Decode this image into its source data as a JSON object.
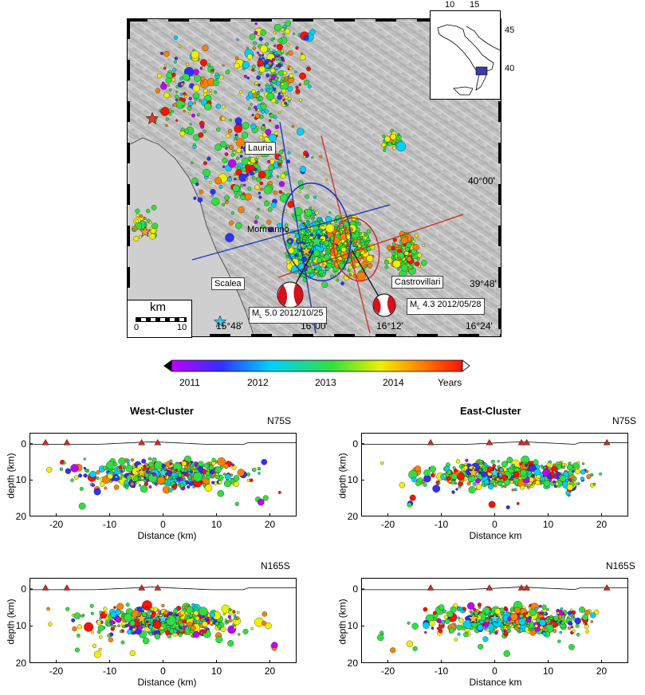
{
  "map": {
    "towns": [
      {
        "name": "Lauria"
      },
      {
        "name": "Mormanno"
      },
      {
        "name": "Scalea"
      },
      {
        "name": "Castrovillari"
      }
    ],
    "lat_labels": [
      "40°00'",
      "39°48'"
    ],
    "lon_labels": [
      "15°48'",
      "16°00'",
      "16°12'",
      "16°24'"
    ],
    "scalebar": {
      "title": "km",
      "ticks": [
        "0",
        "10"
      ]
    },
    "events": [
      {
        "label": "M",
        "text": "5.0 2012/10/25"
      },
      {
        "label": "M",
        "text": "4.3 2012/05/28"
      }
    ],
    "profile_colors": {
      "west": "#1b2fbf",
      "east": "#d32a1e"
    }
  },
  "inset": {
    "lon_ticks": [
      "10",
      "15"
    ],
    "lat_ticks": [
      "45",
      "40"
    ]
  },
  "colorbar": {
    "ticks": [
      "2011",
      "2012",
      "2013",
      "2014"
    ],
    "unit": "Years",
    "colors": [
      "#c000ff",
      "#3030ff",
      "#00d0ff",
      "#30e040",
      "#f0f000",
      "#ff8000",
      "#ff1000"
    ]
  },
  "sections": {
    "west_title": "West-Cluster",
    "east_title": "East-Cluster",
    "panels": [
      {
        "orientation": "N75S",
        "ylabel": "depth (km)",
        "xlabel": "Distance (km)",
        "xticks": [
          "-20",
          "-10",
          "0",
          "10",
          "20"
        ],
        "yticks": [
          "0",
          "10",
          "20"
        ]
      },
      {
        "orientation": "N75S",
        "ylabel": "depth (km)",
        "xlabel": "Distance km",
        "xticks": [
          "-20",
          "-10",
          "0",
          "10",
          "20"
        ],
        "yticks": [
          "0",
          "10",
          "20"
        ]
      },
      {
        "orientation": "N165S",
        "ylabel": "depth (km)",
        "xlabel": "Distance (km)",
        "xticks": [
          "-20",
          "-10",
          "0",
          "10",
          "20"
        ],
        "yticks": [
          "0",
          "10",
          "20"
        ]
      },
      {
        "orientation": "N165S",
        "ylabel": "depth (km)",
        "xlabel": "Distance km",
        "xticks": [
          "-20",
          "-10",
          "0",
          "10",
          "20"
        ],
        "yticks": [
          "0",
          "10",
          "20"
        ]
      }
    ]
  }
}
